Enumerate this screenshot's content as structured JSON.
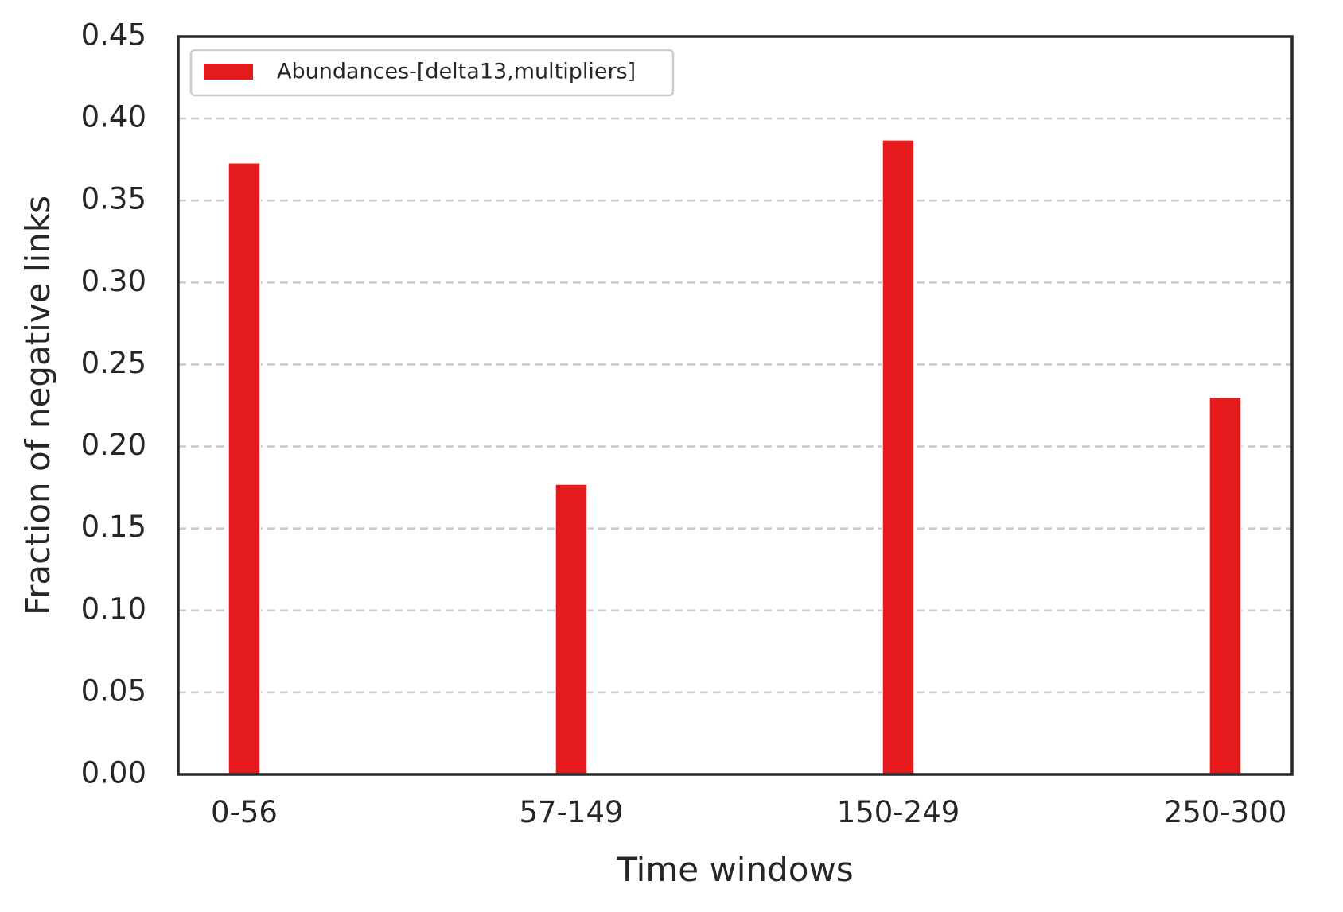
{
  "chart_data": {
    "type": "bar",
    "title": "",
    "xlabel": "Time windows",
    "ylabel": "Fraction of negative links",
    "categories": [
      "0-56",
      "57-149",
      "150-249",
      "250-300"
    ],
    "series": [
      {
        "name": "Abundances-[delta13,multipliers]",
        "color": "#e41a1c",
        "values": [
          0.373,
          0.177,
          0.387,
          0.23
        ]
      }
    ],
    "ylim": [
      0,
      0.45
    ],
    "yticks": [
      "0.00",
      "0.05",
      "0.10",
      "0.15",
      "0.20",
      "0.25",
      "0.30",
      "0.35",
      "0.40",
      "0.45"
    ],
    "grid": "horizontal dashed",
    "legend_position": "upper-left"
  }
}
